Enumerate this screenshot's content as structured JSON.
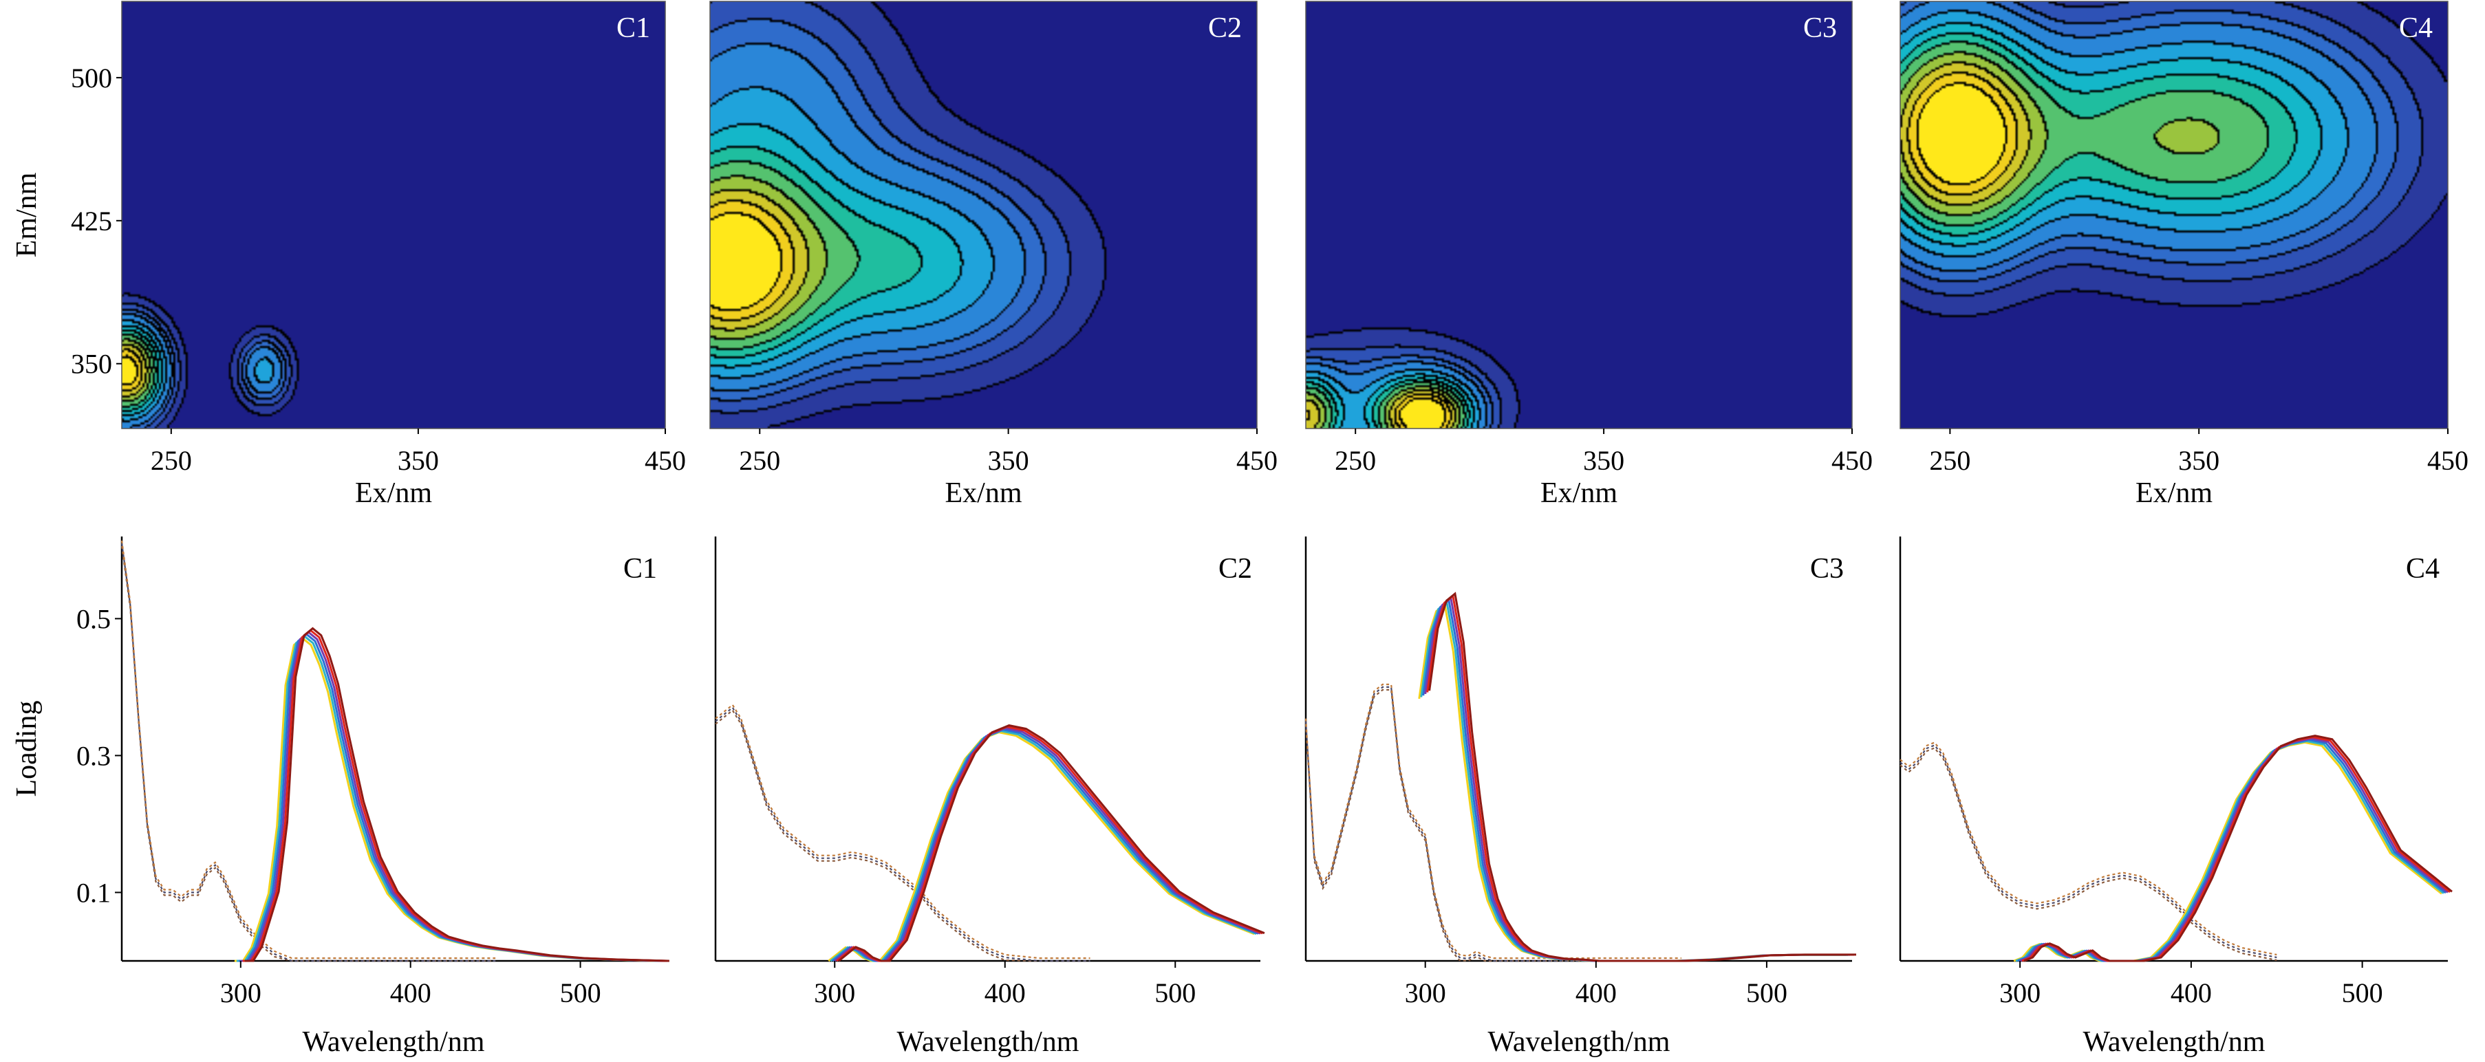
{
  "chart_data": [
    {
      "type": "heatmap",
      "title": "C1",
      "xlabel": "Ex/nm",
      "ylabel": "Em/nm",
      "xlim": [
        230,
        450
      ],
      "ylim": [
        316,
        540
      ],
      "xticks": [
        "250",
        "350",
        "450"
      ],
      "yticks": [
        "350",
        "425",
        "500"
      ],
      "peaks": [
        {
          "ex": 232,
          "em": 346,
          "peak": 1.0,
          "sx": 10,
          "sy": 16
        },
        {
          "ex": 288,
          "em": 346,
          "peak": 0.3,
          "sx": 7,
          "sy": 12
        }
      ]
    },
    {
      "type": "heatmap",
      "title": "C2",
      "xlabel": "Ex/nm",
      "ylabel": "",
      "xlim": [
        230,
        450
      ],
      "ylim": [
        316,
        540
      ],
      "xticks": [
        "250",
        "350",
        "450"
      ],
      "yticks": [],
      "peaks": [
        {
          "ex": 236,
          "em": 400,
          "peak": 1.0,
          "sx": 24,
          "sy": 34
        },
        {
          "ex": 305,
          "em": 402,
          "peak": 0.42,
          "sx": 40,
          "sy": 34
        },
        {
          "ex": 250,
          "em": 480,
          "peak": 0.25,
          "sx": 35,
          "sy": 45
        }
      ]
    },
    {
      "type": "heatmap",
      "title": "C3",
      "xlabel": "Ex/nm",
      "ylabel": "",
      "xlim": [
        230,
        450
      ],
      "ylim": [
        316,
        540
      ],
      "xticks": [
        "250",
        "350",
        "450"
      ],
      "yticks": [],
      "peaks": [
        {
          "ex": 278,
          "em": 322,
          "peak": 1.0,
          "sx": 12,
          "sy": 12
        },
        {
          "ex": 230,
          "em": 322,
          "peak": 0.7,
          "sx": 9,
          "sy": 14
        },
        {
          "ex": 262,
          "em": 330,
          "peak": 0.2,
          "sx": 30,
          "sy": 22
        }
      ]
    },
    {
      "type": "heatmap",
      "title": "C4",
      "xlabel": "Ex/nm",
      "ylabel": "",
      "xlim": [
        230,
        450
      ],
      "ylim": [
        316,
        540
      ],
      "xticks": [
        "250",
        "350",
        "450"
      ],
      "yticks": [],
      "peaks": [
        {
          "ex": 252,
          "em": 470,
          "peak": 1.0,
          "sx": 22,
          "sy": 38
        },
        {
          "ex": 356,
          "em": 468,
          "peak": 0.5,
          "sx": 45,
          "sy": 40
        },
        {
          "ex": 300,
          "em": 470,
          "peak": 0.2,
          "sx": 50,
          "sy": 30
        }
      ]
    },
    {
      "type": "line",
      "title": "C1",
      "xlabel": "Wavelength/nm",
      "ylabel": "Loading",
      "xlim": [
        230,
        550
      ],
      "ylim": [
        0,
        0.62
      ],
      "xticks": [
        "300",
        "400",
        "500"
      ],
      "yticks": [
        "0.1",
        "0.3",
        "0.5"
      ],
      "series": [
        {
          "style": "ex",
          "x": [
            230,
            235,
            240,
            245,
            250,
            255,
            260,
            265,
            270,
            275,
            280,
            285,
            290,
            295,
            300,
            310,
            320,
            330,
            400,
            450
          ],
          "y": [
            0.61,
            0.52,
            0.35,
            0.2,
            0.12,
            0.1,
            0.1,
            0.09,
            0.1,
            0.1,
            0.13,
            0.14,
            0.12,
            0.09,
            0.06,
            0.03,
            0.01,
            0.0,
            0.0,
            0.0
          ]
        },
        {
          "style": "em",
          "x": [
            300,
            305,
            310,
            315,
            320,
            325,
            330,
            335,
            340,
            345,
            350,
            355,
            360,
            370,
            380,
            390,
            400,
            410,
            420,
            430,
            440,
            450,
            460,
            480,
            500,
            520,
            550
          ],
          "y": [
            0.0,
            0.0,
            0.02,
            0.06,
            0.1,
            0.2,
            0.41,
            0.47,
            0.48,
            0.47,
            0.44,
            0.4,
            0.34,
            0.23,
            0.15,
            0.1,
            0.07,
            0.05,
            0.035,
            0.028,
            0.022,
            0.018,
            0.015,
            0.008,
            0.004,
            0.002,
            0.0
          ]
        }
      ]
    },
    {
      "type": "line",
      "title": "C2",
      "xlabel": "Wavelength/nm",
      "ylabel": "",
      "xlim": [
        230,
        550
      ],
      "ylim": [
        0,
        0.62
      ],
      "xticks": [
        "300",
        "400",
        "500"
      ],
      "yticks": [],
      "series": [
        {
          "style": "ex",
          "x": [
            230,
            235,
            240,
            245,
            250,
            255,
            260,
            270,
            280,
            290,
            300,
            310,
            320,
            330,
            340,
            350,
            360,
            370,
            380,
            390,
            400,
            420,
            450
          ],
          "y": [
            0.35,
            0.36,
            0.37,
            0.35,
            0.31,
            0.27,
            0.23,
            0.19,
            0.17,
            0.15,
            0.15,
            0.155,
            0.15,
            0.14,
            0.12,
            0.1,
            0.07,
            0.05,
            0.03,
            0.015,
            0.005,
            0.0,
            0.0
          ]
        },
        {
          "style": "em",
          "x": [
            300,
            305,
            310,
            315,
            320,
            325,
            330,
            340,
            350,
            360,
            370,
            380,
            390,
            400,
            410,
            420,
            430,
            440,
            450,
            460,
            480,
            500,
            520,
            550
          ],
          "y": [
            0.0,
            0.01,
            0.02,
            0.015,
            0.005,
            0.0,
            0.0,
            0.03,
            0.1,
            0.18,
            0.25,
            0.3,
            0.33,
            0.34,
            0.335,
            0.32,
            0.3,
            0.27,
            0.24,
            0.21,
            0.15,
            0.1,
            0.07,
            0.04
          ]
        }
      ]
    },
    {
      "type": "line",
      "title": "C3",
      "xlabel": "Wavelength/nm",
      "ylabel": "",
      "xlim": [
        230,
        550
      ],
      "ylim": [
        0,
        0.62
      ],
      "xticks": [
        "300",
        "400",
        "500"
      ],
      "yticks": [],
      "series": [
        {
          "style": "ex",
          "x": [
            230,
            235,
            240,
            245,
            250,
            255,
            260,
            265,
            270,
            275,
            280,
            285,
            290,
            295,
            300,
            305,
            310,
            315,
            320,
            325,
            330,
            335,
            340,
            400,
            450
          ],
          "y": [
            0.35,
            0.15,
            0.11,
            0.13,
            0.18,
            0.23,
            0.28,
            0.34,
            0.39,
            0.4,
            0.4,
            0.28,
            0.22,
            0.2,
            0.18,
            0.1,
            0.05,
            0.02,
            0.005,
            0.003,
            0.01,
            0.003,
            0.0,
            0.0,
            0.0
          ]
        },
        {
          "style": "em",
          "x": [
            300,
            305,
            310,
            315,
            320,
            325,
            330,
            335,
            340,
            345,
            350,
            355,
            360,
            370,
            380,
            390,
            400,
            420,
            450,
            470,
            490,
            500,
            520,
            550
          ],
          "y": [
            0.39,
            0.48,
            0.52,
            0.53,
            0.46,
            0.33,
            0.23,
            0.14,
            0.09,
            0.06,
            0.04,
            0.025,
            0.015,
            0.007,
            0.003,
            0.002,
            0.0,
            0.0,
            0.0,
            0.002,
            0.006,
            0.008,
            0.009,
            0.009
          ]
        }
      ]
    },
    {
      "type": "line",
      "title": "C4",
      "xlabel": "Wavelength/nm",
      "ylabel": "",
      "xlim": [
        230,
        550
      ],
      "ylim": [
        0,
        0.62
      ],
      "xticks": [
        "300",
        "400",
        "500"
      ],
      "yticks": [],
      "series": [
        {
          "style": "ex",
          "x": [
            230,
            235,
            240,
            245,
            250,
            255,
            260,
            265,
            270,
            275,
            280,
            290,
            300,
            310,
            320,
            330,
            340,
            350,
            360,
            370,
            380,
            390,
            400,
            410,
            420,
            430,
            440,
            450
          ],
          "y": [
            0.29,
            0.28,
            0.29,
            0.31,
            0.315,
            0.3,
            0.27,
            0.23,
            0.19,
            0.16,
            0.13,
            0.1,
            0.085,
            0.08,
            0.085,
            0.095,
            0.11,
            0.12,
            0.125,
            0.12,
            0.105,
            0.085,
            0.06,
            0.04,
            0.025,
            0.015,
            0.01,
            0.005
          ]
        },
        {
          "style": "em",
          "x": [
            300,
            305,
            310,
            315,
            320,
            325,
            330,
            335,
            340,
            345,
            350,
            360,
            370,
            380,
            390,
            400,
            410,
            420,
            430,
            440,
            450,
            460,
            470,
            480,
            490,
            500,
            520,
            540,
            550
          ],
          "y": [
            0.0,
            0.005,
            0.02,
            0.025,
            0.02,
            0.01,
            0.005,
            0.01,
            0.015,
            0.005,
            0.0,
            0.0,
            0.0,
            0.005,
            0.03,
            0.07,
            0.12,
            0.18,
            0.24,
            0.28,
            0.31,
            0.32,
            0.325,
            0.32,
            0.29,
            0.25,
            0.16,
            0.12,
            0.1
          ]
        }
      ]
    }
  ]
}
